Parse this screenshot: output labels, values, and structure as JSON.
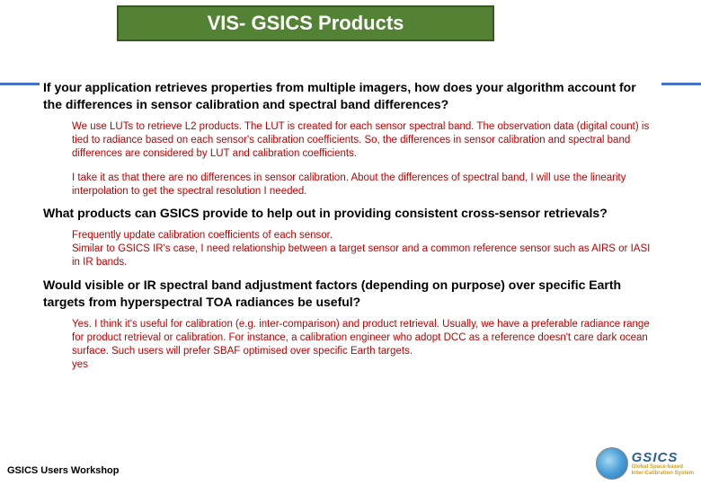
{
  "title": "VIS- GSICS Products",
  "colors": {
    "title_bg": "#548235",
    "title_border": "#385723",
    "title_text": "#ffffff",
    "accent_line": "#4472c4",
    "question_text": "#000000",
    "answer_text": "#c00000",
    "footer_text": "#000000",
    "logo_text": "#2a6090",
    "logo_sub": "#d4a017"
  },
  "questions": [
    {
      "q": "If your application retrieves properties from multiple imagers, how does your algorithm account for the differences in sensor calibration and spectral band differences?",
      "answers": [
        "We use LUTs to retrieve L2 products. The LUT is created for each sensor spectral band. The observation data (digital count) is tied to radiance based on each sensor's calibration coefficients. So, the differences in sensor calibration and spectral band differences are considered by LUT and calibration coefficients.",
        "I take it as that there are no differences in sensor calibration. About the differences of spectral band, I will use the linearity interpolation to get the spectral resolution I needed."
      ]
    },
    {
      "q": "What products can GSICS provide to help out in providing consistent cross-sensor retrievals?",
      "answers": [
        "Frequently update calibration coefficients of each sensor.\nSimilar to GSICS IR's case, I need relationship between a target sensor and a common reference sensor such as AIRS or IASI in IR bands."
      ]
    },
    {
      "q": "Would visible or IR spectral band adjustment factors (depending on purpose) over specific Earth targets from hyperspectral TOA radiances be useful?",
      "answers": [
        "Yes. I think it's useful for calibration (e.g. inter-comparison) and product retrieval. Usually, we have a preferable radiance range for product retrieval or calibration. For instance, a calibration engineer who adopt DCC as a reference doesn't care dark ocean surface. Such users will prefer SBAF optimised over specific Earth targets.\nyes"
      ]
    }
  ],
  "footer": "GSICS Users Workshop",
  "logo": {
    "main": "GSICS",
    "sub1": "Global Space-based",
    "sub2": "Inter-Calibration System"
  },
  "fonts": {
    "title_size": 22,
    "question_size": 14,
    "answer_size": 11.5,
    "footer_size": 11
  }
}
